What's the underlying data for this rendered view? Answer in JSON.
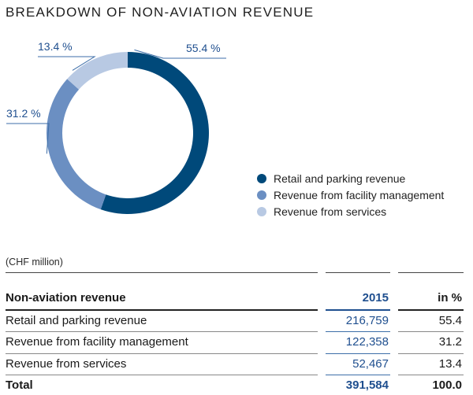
{
  "title": "BREAKDOWN OF NON-AVIATION REVENUE",
  "colors": {
    "retail": "#00497a",
    "facility": "#6b8fc2",
    "services": "#b8c9e3",
    "accent_text": "#1f4f8f"
  },
  "chart_data": {
    "type": "pie",
    "donut": true,
    "title": "BREAKDOWN OF NON-AVIATION REVENUE",
    "slices": [
      {
        "name": "Retail and parking revenue",
        "value": 55.4,
        "label": "55.4 %",
        "color": "#00497a"
      },
      {
        "name": "Revenue from facility management",
        "value": 31.2,
        "label": "31.2 %",
        "color": "#6b8fc2"
      },
      {
        "name": "Revenue from services",
        "value": 13.4,
        "label": "13.4 %",
        "color": "#b8c9e3"
      }
    ],
    "legend_position": "right"
  },
  "table": {
    "unit": "(CHF million)",
    "header": {
      "label": "Non-aviation revenue",
      "year": "2015",
      "pct": "in %"
    },
    "rows": [
      {
        "label": "Retail and parking revenue",
        "value": "216,759",
        "pct": "55.4"
      },
      {
        "label": "Revenue from facility management",
        "value": "122,358",
        "pct": "31.2"
      },
      {
        "label": "Revenue from services",
        "value": "52,467",
        "pct": "13.4"
      }
    ],
    "total": {
      "label": "Total",
      "value": "391,584",
      "pct": "100.0"
    }
  }
}
